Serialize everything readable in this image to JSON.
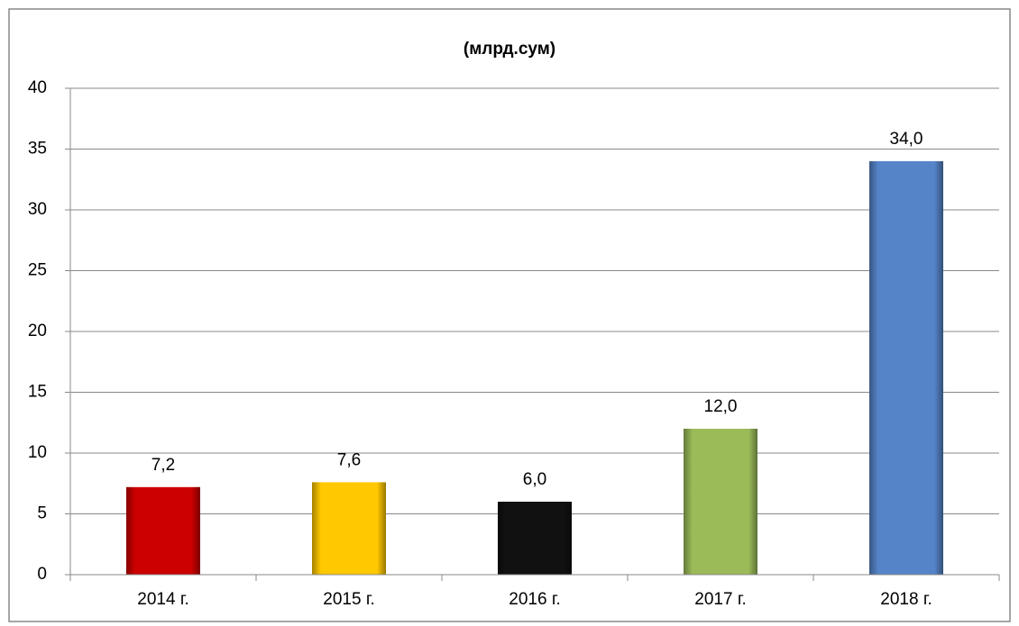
{
  "chart_data": {
    "type": "bar",
    "title": "(млрд.сум)",
    "categories": [
      "2014 г.",
      "2015 г.",
      "2016 г.",
      "2017 г.",
      "2018 г."
    ],
    "values": [
      7.2,
      7.6,
      6.0,
      12.0,
      34.0
    ],
    "value_labels": [
      "7,2",
      "7,6",
      "6,0",
      "12,0",
      "34,0"
    ],
    "colors": [
      "#cc0000",
      "#ffc800",
      "#111111",
      "#9bbb59",
      "#5584c8"
    ],
    "ylim": [
      0,
      40
    ],
    "yticks": [
      0,
      5,
      10,
      15,
      20,
      25,
      30,
      35,
      40
    ],
    "grid": true
  }
}
